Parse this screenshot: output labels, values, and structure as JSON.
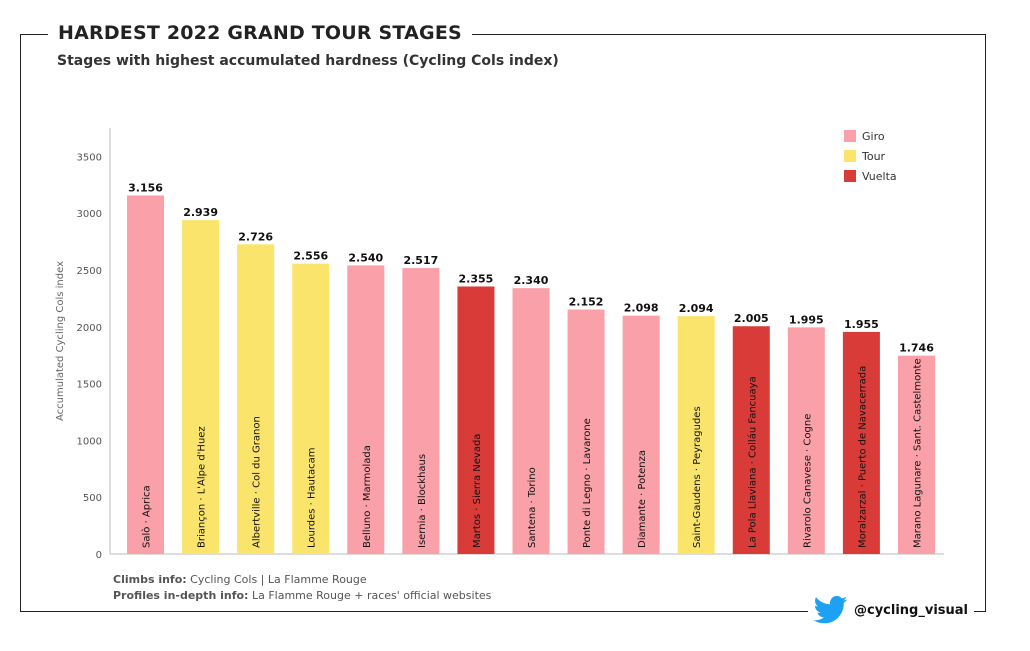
{
  "header": {
    "title": "HARDEST 2022 GRAND TOUR STAGES",
    "subtitle": "Stages with highest accumulated hardness (Cycling Cols index)"
  },
  "footer": {
    "climbs_label": "Climbs info:",
    "climbs_value": "Cycling Cols | La Flamme Rouge",
    "profiles_label": "Profiles in-depth info:",
    "profiles_value": "La Flamme Rouge + races' official websites"
  },
  "social": {
    "handle": "@cycling_visual",
    "icon": "twitter-bird-icon"
  },
  "colors": {
    "Giro": "#f9a0a8",
    "Tour": "#fbe46b",
    "Vuelta": "#d93b38"
  },
  "chart_data": {
    "type": "bar",
    "ylabel": "Accumulated Cycling Cols index",
    "ylim": [
      0,
      3750
    ],
    "yticks": [
      0,
      500,
      1000,
      1500,
      2000,
      2500,
      3000,
      3500
    ],
    "legend_position": "top-right",
    "legend": [
      "Giro",
      "Tour",
      "Vuelta"
    ],
    "categories": [
      "Salò · Aprica",
      "Briançon · L'Alpe d'Huez",
      "Albertville · Col du Granon",
      "Lourdes · Hautacam",
      "Belluno · Marmolada",
      "Isernia · Blockhaus",
      "Martos · Sierra Nevada",
      "Santena · Torino",
      "Ponte di Legno · Lavarone",
      "Diamante · Potenza",
      "Saint-Gaudens · Peyragudes",
      "La Pola Llaviana · Colláu Fancuaya",
      "Rivarolo Canavese · Cogne",
      "Moralzarzal · Puerto de Navacerrada",
      "Marano Lagunare · Sant. Castelmonte"
    ],
    "values": [
      3156,
      2939,
      2726,
      2556,
      2540,
      2517,
      2355,
      2340,
      2152,
      2098,
      2094,
      2005,
      1995,
      1955,
      1746
    ],
    "labels": [
      "3.156",
      "2.939",
      "2.726",
      "2.556",
      "2.540",
      "2.517",
      "2.355",
      "2.340",
      "2.152",
      "2.098",
      "2.094",
      "2.005",
      "1.995",
      "1.955",
      "1.746"
    ],
    "race": [
      "Giro",
      "Tour",
      "Tour",
      "Tour",
      "Giro",
      "Giro",
      "Vuelta",
      "Giro",
      "Giro",
      "Giro",
      "Tour",
      "Vuelta",
      "Giro",
      "Vuelta",
      "Giro"
    ],
    "grid": false
  }
}
